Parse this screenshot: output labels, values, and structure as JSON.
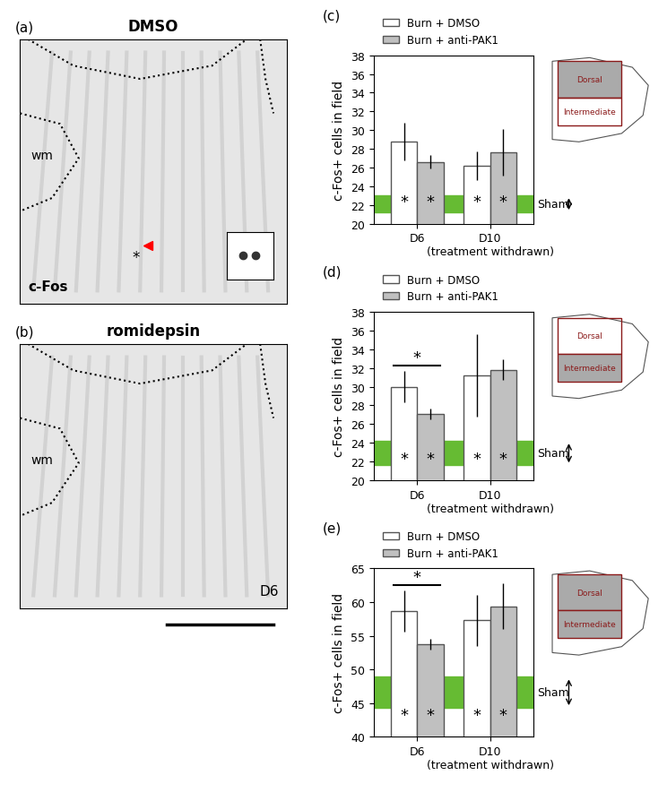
{
  "chart_data": [
    {
      "type": "bar",
      "panel": "(c)",
      "ylabel": "c-Fos+ cells in field",
      "categories": [
        "D6",
        "D10\n(treatment withdrawn)"
      ],
      "series": [
        {
          "name": "Burn + DMSO",
          "color": "#ffffff",
          "values": [
            28.8,
            26.2
          ],
          "errors": [
            2.0,
            1.5
          ]
        },
        {
          "name": "Burn + anti-PAK1",
          "color": "#c0c0c0",
          "values": [
            26.6,
            27.6
          ],
          "errors": [
            0.7,
            2.5
          ]
        }
      ],
      "reference_band": {
        "name": "Sham",
        "value": 22.1,
        "error": 0.9,
        "color": "#66bb33"
      },
      "bar_annotation": "*",
      "comparisons": [],
      "inset": {
        "labels": [
          "Dorsal",
          "Intermediate"
        ],
        "highlighted": [
          "Dorsal"
        ]
      },
      "ylim": [
        20,
        38
      ],
      "yticks": [
        20,
        22,
        24,
        26,
        28,
        30,
        32,
        34,
        36,
        38
      ],
      "legend": "top"
    },
    {
      "type": "bar",
      "panel": "(d)",
      "ylabel": "c-Fos+ cells in field",
      "categories": [
        "D6",
        "D10\n(treatment withdrawn)"
      ],
      "series": [
        {
          "name": "Burn + DMSO",
          "color": "#ffffff",
          "values": [
            30.0,
            31.2
          ],
          "errors": [
            1.7,
            4.4
          ]
        },
        {
          "name": "Burn + anti-PAK1",
          "color": "#c0c0c0",
          "values": [
            27.1,
            31.8
          ],
          "errors": [
            0.6,
            1.1
          ]
        }
      ],
      "reference_band": {
        "name": "Sham",
        "value": 22.9,
        "error": 1.3,
        "color": "#66bb33"
      },
      "bar_annotation": "*",
      "comparisons": [
        {
          "category": "D6",
          "text": "*"
        }
      ],
      "inset": {
        "labels": [
          "Dorsal",
          "Intermediate"
        ],
        "highlighted": [
          "Intermediate"
        ]
      },
      "ylim": [
        20,
        38
      ],
      "yticks": [
        20,
        22,
        24,
        26,
        28,
        30,
        32,
        34,
        36,
        38
      ],
      "legend": "top"
    },
    {
      "type": "bar",
      "panel": "(e)",
      "ylabel": "c-Fos+ cells in field",
      "categories": [
        "D6",
        "D10\n(treatment withdrawn)"
      ],
      "series": [
        {
          "name": "Burn + DMSO",
          "color": "#ffffff",
          "values": [
            58.7,
            57.3
          ],
          "errors": [
            3.1,
            3.8
          ]
        },
        {
          "name": "Burn + anti-PAK1",
          "color": "#c0c0c0",
          "values": [
            53.7,
            59.4
          ],
          "errors": [
            0.8,
            3.4
          ]
        }
      ],
      "reference_band": {
        "name": "Sham",
        "value": 46.6,
        "error": 2.3,
        "color": "#66bb33"
      },
      "bar_annotation": "*",
      "comparisons": [
        {
          "category": "D6",
          "text": "*"
        }
      ],
      "inset": {
        "labels": [
          "Dorsal",
          "Intermediate"
        ],
        "highlighted": [
          "Dorsal",
          "Intermediate"
        ]
      },
      "ylim": [
        40,
        65
      ],
      "yticks": [
        40,
        45,
        50,
        55,
        60,
        65
      ],
      "legend": "top"
    }
  ],
  "images": [
    {
      "panel": "(a)",
      "title": "DMSO",
      "region_label": "wm",
      "stain_label": "c-Fos",
      "marker_text": "*"
    },
    {
      "panel": "(b)",
      "title": "romidepsin",
      "region_label": "wm",
      "time_label": "D6"
    }
  ]
}
